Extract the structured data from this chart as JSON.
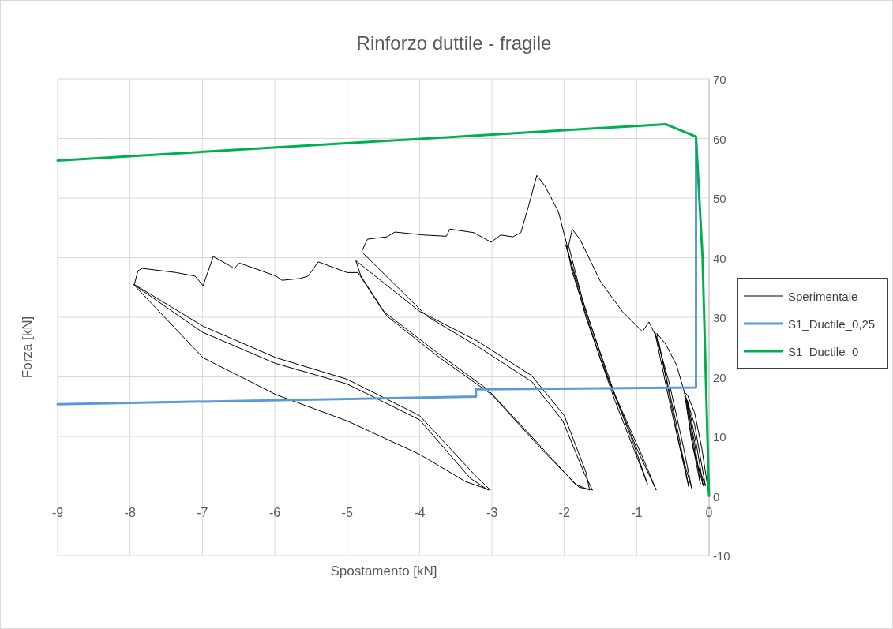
{
  "chart_data": {
    "type": "line",
    "title": "Rinforzo duttile - fragile",
    "xlabel": "Spostamento [kN]",
    "ylabel": "Forza [kN]",
    "xlim": [
      -9,
      0
    ],
    "ylim": [
      -10,
      70
    ],
    "xticks": [
      -9,
      -8,
      -7,
      -6,
      -5,
      -4,
      -3,
      -2,
      -1,
      0
    ],
    "yticks": [
      -10,
      0,
      10,
      20,
      30,
      40,
      50,
      60,
      70
    ],
    "grid": true,
    "legend": "right",
    "marker": "none",
    "line_style": "solid",
    "series": [
      {
        "name": "Sperimentale",
        "color": "#000000",
        "x": [
          0,
          -0.1,
          -0.2,
          -0.3,
          -0.34,
          -0.25,
          -0.12,
          -0.2,
          -0.32,
          -0.22,
          -0.08,
          -0.18,
          -0.3,
          -0.18,
          -0.05,
          -0.2,
          -0.34,
          -0.45,
          -0.6,
          -0.72,
          -0.55,
          -0.4,
          -0.24,
          -0.35,
          -0.55,
          -0.75,
          -0.55,
          -0.28,
          -0.45,
          -0.7,
          -0.83,
          -0.92,
          -1.2,
          -1.5,
          -1.78,
          -1.89,
          -1.94,
          -1.75,
          -1.4,
          -1.0,
          -0.73,
          -0.9,
          -1.3,
          -1.7,
          -1.98,
          -1.7,
          -1.3,
          -0.85,
          -1.05,
          -1.5,
          -1.9,
          -1.96,
          -2.08,
          -2.27,
          -2.38,
          -2.49,
          -2.6,
          -2.71,
          -2.88,
          -3.01,
          -3.25,
          -3.58,
          -3.63,
          -3.94,
          -4.34,
          -4.45,
          -4.72,
          -4.8,
          -3.9,
          -3.17,
          -2.45,
          -2.02,
          -1.72,
          -1.61,
          -1.8,
          -2.27,
          -3.0,
          -3.72,
          -4.45,
          -4.81,
          -4.88,
          -4.0,
          -3.2,
          -2.45,
          -2.0,
          -1.7,
          -1.65,
          -1.85,
          -2.3,
          -3.05,
          -3.75,
          -4.5,
          -4.85,
          -5.0,
          -5.4,
          -5.54,
          -5.65,
          -5.9,
          -5.98,
          -6.49,
          -6.56,
          -6.63,
          -6.85,
          -6.99,
          -7.1,
          -7.36,
          -7.83,
          -7.89,
          -7.94,
          -6.99,
          -5.98,
          -5,
          -4,
          -3.25,
          -3.02,
          -3.36,
          -4,
          -5,
          -5.98,
          -6.99,
          -7.95,
          -7.0,
          -6,
          -5,
          -4,
          -3.3,
          -3.05
        ],
        "values": [
          0,
          8,
          14,
          17,
          17.4,
          10,
          2,
          9,
          16.5,
          8,
          1.7,
          9,
          16,
          6,
          1.7,
          12,
          17.4,
          22,
          25.5,
          27.3,
          17,
          8,
          1.3,
          8,
          19,
          27.6,
          16,
          1.5,
          12,
          26,
          29.2,
          27.6,
          31,
          36,
          43,
          44.8,
          42,
          33,
          20,
          8,
          1,
          6,
          17,
          31,
          42.2,
          30,
          16,
          2,
          9,
          23,
          38,
          42,
          47.7,
          52.1,
          53.8,
          48.8,
          44.2,
          43.5,
          43.8,
          42.6,
          44.2,
          44.8,
          43.6,
          43.8,
          44.3,
          43.5,
          43.1,
          41,
          30.2,
          24.9,
          19.2,
          12.6,
          3.7,
          1,
          1.5,
          7.3,
          17,
          23.2,
          30.2,
          36.9,
          39.5,
          31,
          26,
          20.2,
          13.5,
          4,
          1,
          2,
          8,
          17.8,
          24,
          31,
          37.5,
          37.5,
          39.3,
          36.9,
          36.5,
          36.2,
          36.9,
          39.1,
          38.2,
          38.7,
          40.2,
          35.3,
          36.9,
          37.5,
          38.2,
          37.8,
          35.5,
          28.5,
          23.2,
          19.6,
          13.5,
          3.7,
          1,
          2.4,
          7,
          12.6,
          17,
          23.2,
          35.5,
          27.5,
          22.3,
          18.8,
          12.8,
          3,
          1
        ]
      },
      {
        "name": "S1_Ductile_0,25",
        "color": "#5b9bd5",
        "x": [
          -9,
          -3.22,
          -3.22,
          -0.18,
          -0.18
        ],
        "values": [
          15.4,
          16.7,
          17.9,
          18.2,
          60.2
        ]
      },
      {
        "name": "S1_Ductile_0",
        "color": "#00b050",
        "x": [
          -9,
          -0.6,
          -0.18,
          -0.09,
          0
        ],
        "values": [
          56.3,
          62.4,
          60.3,
          40,
          0
        ]
      }
    ]
  }
}
